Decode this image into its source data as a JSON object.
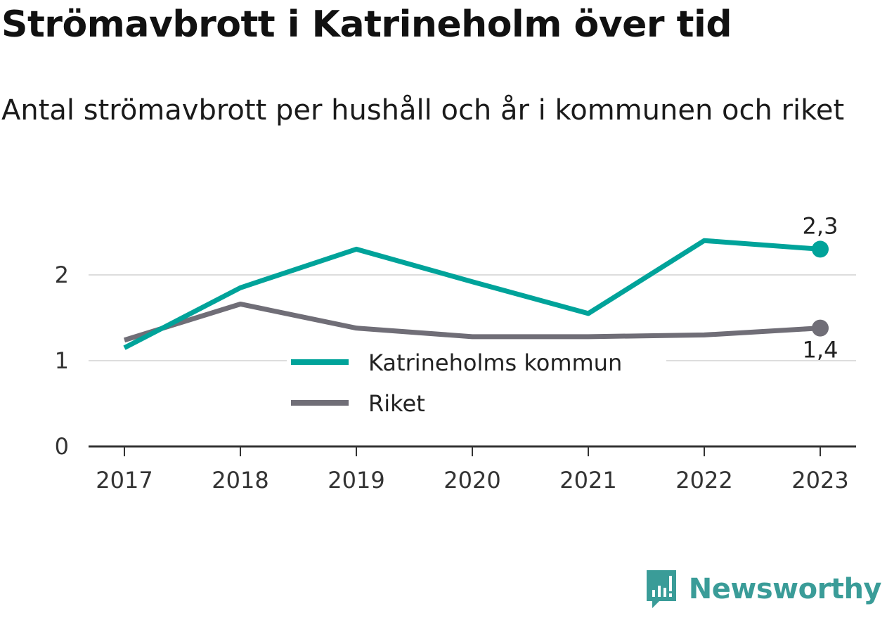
{
  "header": {
    "title": "Strömavbrott i Katrineholm över tid",
    "subtitle": "Antal strömavbrott per hushåll och år i kommunen och riket"
  },
  "brand": {
    "name": "Newsworthy",
    "logo_icon": "newsworthy-logo-icon",
    "color": "#3a9c98"
  },
  "chart_data": {
    "type": "line",
    "categories": [
      "2017",
      "2018",
      "2019",
      "2020",
      "2021",
      "2022",
      "2023"
    ],
    "series": [
      {
        "name": "Katrineholms kommun",
        "color": "#00a39a",
        "values": [
          1.15,
          1.85,
          2.3,
          1.92,
          1.55,
          2.4,
          2.3
        ],
        "end_label": "2,3"
      },
      {
        "name": "Riket",
        "color": "#706e77",
        "values": [
          1.24,
          1.66,
          1.38,
          1.28,
          1.28,
          1.3,
          1.38
        ],
        "end_label": "1,4"
      }
    ],
    "ylim": [
      0,
      2.5
    ],
    "yticks": [
      0,
      1,
      2
    ],
    "ytick_labels": [
      "0",
      "1",
      "2"
    ],
    "grid": true,
    "legend_position": "inside-bottom-center"
  }
}
